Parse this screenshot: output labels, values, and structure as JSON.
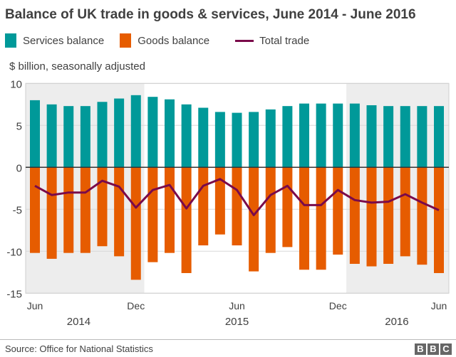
{
  "chart_data": {
    "type": "bar",
    "title": "Balance of UK trade in goods & services, June 2014 - June 2016",
    "ylabel": "$ billion, seasonally adjusted",
    "ylim": [
      -15,
      10
    ],
    "yticks": [
      10,
      5,
      0,
      -5,
      -10,
      -15
    ],
    "ytick_labels": [
      "10",
      "5",
      "0",
      "-5",
      "-10",
      "-15"
    ],
    "categories": [
      "Jun 2014",
      "Jul 2014",
      "Aug 2014",
      "Sep 2014",
      "Oct 2014",
      "Nov 2014",
      "Dec 2014",
      "Jan 2015",
      "Feb 2015",
      "Mar 2015",
      "Apr 2015",
      "May 2015",
      "Jun 2015",
      "Jul 2015",
      "Aug 2015",
      "Sep 2015",
      "Oct 2015",
      "Nov 2015",
      "Dec 2015",
      "Jan 2016",
      "Feb 2016",
      "Mar 2016",
      "Apr 2016",
      "May 2016",
      "Jun 2016"
    ],
    "xtick_labels": [
      {
        "label": "Jun",
        "index": 0
      },
      {
        "label": "Dec",
        "index": 6
      },
      {
        "label": "Jun",
        "index": 12
      },
      {
        "label": "Dec",
        "index": 18
      },
      {
        "label": "Jun",
        "index": 24
      }
    ],
    "year_labels": [
      {
        "label": "2014",
        "index": 2.6
      },
      {
        "label": "2015",
        "index": 12
      },
      {
        "label": "2016",
        "index": 21.5
      }
    ],
    "shaded_ranges": [
      [
        0,
        6
      ],
      [
        19,
        24
      ]
    ],
    "grid": true,
    "legend_position": "top-left",
    "series": [
      {
        "name": "Services balance",
        "type": "bar",
        "color": "#009999",
        "values": [
          8.0,
          7.5,
          7.3,
          7.3,
          7.8,
          8.2,
          8.6,
          8.4,
          8.1,
          7.5,
          7.1,
          6.6,
          6.5,
          6.6,
          6.9,
          7.3,
          7.6,
          7.6,
          7.6,
          7.6,
          7.4,
          7.3,
          7.3,
          7.3,
          7.3
        ]
      },
      {
        "name": "Goods balance",
        "type": "bar",
        "color": "#e65c00",
        "values": [
          -10.2,
          -10.9,
          -10.2,
          -10.2,
          -9.4,
          -10.6,
          -13.4,
          -11.3,
          -10.2,
          -12.6,
          -9.3,
          -8.0,
          -9.3,
          -12.4,
          -10.2,
          -9.5,
          -12.2,
          -12.2,
          -10.4,
          -11.5,
          -11.8,
          -11.5,
          -10.6,
          -11.6,
          -12.6
        ]
      },
      {
        "name": "Total trade",
        "type": "line",
        "color": "#7a0a4a",
        "values": [
          -2.2,
          -3.3,
          -3.0,
          -3.0,
          -1.6,
          -2.3,
          -4.8,
          -2.7,
          -2.1,
          -4.9,
          -2.2,
          -1.4,
          -2.7,
          -5.7,
          -3.3,
          -2.2,
          -4.5,
          -4.5,
          -2.7,
          -3.9,
          -4.2,
          -4.1,
          -3.2,
          -4.2,
          -5.1
        ]
      }
    ]
  },
  "footer": {
    "source": "Source: Office for National Statistics",
    "logo": "BBC"
  }
}
